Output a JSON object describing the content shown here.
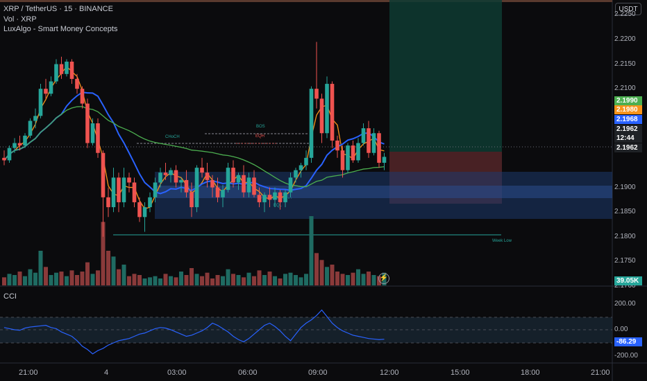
{
  "legend": {
    "symbol": "XRP / TetherUS · 15 · BINANCE",
    "volume": "Vol · XRP",
    "indicator": "LuxAlgo - Smart Money Concepts"
  },
  "currency_button": "USDT",
  "price_axis": [
    "2.2250",
    "2.2200",
    "2.2150",
    "2.2100",
    "2.1900",
    "2.1850",
    "2.1800",
    "2.1750",
    "2.1700"
  ],
  "price_tags": [
    {
      "text": "2.1990",
      "bg": "#4caf50",
      "fg": "#ffffff"
    },
    {
      "text": "2.1980",
      "bg": "#f7931a",
      "fg": "#ffffff"
    },
    {
      "text": "2.1968",
      "bg": "#2962ff",
      "fg": "#ffffff"
    },
    {
      "text": "2.1962",
      "bg": "#1f2226",
      "fg": "#ffffff"
    },
    {
      "text": "12:44",
      "bg": "#1f2226",
      "fg": "#ffffff"
    },
    {
      "text": "2.1962",
      "bg": "#1f2226",
      "fg": "#ffffff"
    }
  ],
  "volume_tag": {
    "text": "39.05K",
    "bg": "#26a69a"
  },
  "smc_labels": {
    "choch": "CHoCH",
    "bos": "BOS",
    "eqh": "EQH",
    "eql": "EQL",
    "week_low": "Week Low"
  },
  "cci": {
    "label": "CCI",
    "axis": [
      "200.00",
      "0.00",
      "-200.00"
    ],
    "value_tag": "-86.29"
  },
  "time_axis": [
    "21:00",
    "4",
    "03:00",
    "06:00",
    "09:00",
    "12:00",
    "15:00",
    "18:00",
    "21:00"
  ],
  "colors": {
    "up": "#26a69a",
    "down": "#ef5350",
    "ma_fast": "#f7931a",
    "ma_mid": "#2962ff",
    "ma_slow": "#4caf50",
    "cci": "#2962ff"
  },
  "chart_data": {
    "type": "candlestick",
    "symbol": "XRP/USDT",
    "timeframe": "15",
    "ohlc": [
      [
        2.196,
        2.1975,
        2.1945,
        2.1955
      ],
      [
        2.1955,
        2.1985,
        2.195,
        2.198
      ],
      [
        2.198,
        2.2,
        2.197,
        2.199
      ],
      [
        2.199,
        2.2005,
        2.1975,
        2.1985
      ],
      [
        2.1985,
        2.201,
        2.198,
        2.2005
      ],
      [
        2.2005,
        2.204,
        2.2,
        2.2035
      ],
      [
        2.2035,
        2.206,
        2.202,
        2.2045
      ],
      [
        2.2045,
        2.211,
        2.204,
        2.21
      ],
      [
        2.21,
        2.212,
        2.208,
        2.209
      ],
      [
        2.209,
        2.2125,
        2.2085,
        2.2115
      ],
      [
        2.2115,
        2.216,
        2.211,
        2.215
      ],
      [
        2.215,
        2.2165,
        2.212,
        2.213
      ],
      [
        2.213,
        2.216,
        2.2125,
        2.2155
      ],
      [
        2.2155,
        2.216,
        2.211,
        2.212
      ],
      [
        2.212,
        2.213,
        2.209,
        2.21
      ],
      [
        2.21,
        2.2105,
        2.206,
        2.207
      ],
      [
        2.207,
        2.208,
        2.198,
        2.199
      ],
      [
        2.199,
        2.204,
        2.1985,
        2.203
      ],
      [
        2.203,
        2.204,
        2.196,
        2.197
      ],
      [
        2.197,
        2.1975,
        2.18,
        2.188
      ],
      [
        2.188,
        2.19,
        2.184,
        2.186
      ],
      [
        2.186,
        2.194,
        2.185,
        2.192
      ],
      [
        2.192,
        2.193,
        2.185,
        2.187
      ],
      [
        2.187,
        2.194,
        2.186,
        2.192
      ],
      [
        2.192,
        2.193,
        2.189,
        2.191
      ],
      [
        2.191,
        2.192,
        2.186,
        2.187
      ],
      [
        2.187,
        2.188,
        2.183,
        2.184
      ],
      [
        2.184,
        2.187,
        2.181,
        2.186
      ],
      [
        2.186,
        2.189,
        2.185,
        2.188
      ],
      [
        2.188,
        2.192,
        2.187,
        2.191
      ],
      [
        2.191,
        2.194,
        2.19,
        2.193
      ],
      [
        2.193,
        2.195,
        2.1915,
        2.1925
      ],
      [
        2.1925,
        2.194,
        2.191,
        2.1935
      ],
      [
        2.1935,
        2.1945,
        2.19,
        2.191
      ],
      [
        2.191,
        2.192,
        2.189,
        2.1915
      ],
      [
        2.1915,
        2.1935,
        2.188,
        2.189
      ],
      [
        2.189,
        2.191,
        2.184,
        2.186
      ],
      [
        2.186,
        2.1945,
        2.185,
        2.194
      ],
      [
        2.194,
        2.196,
        2.192,
        2.193
      ],
      [
        2.193,
        2.195,
        2.19,
        2.1915
      ],
      [
        2.1915,
        2.1925,
        2.188,
        2.19
      ],
      [
        2.19,
        2.192,
        2.187,
        2.188
      ],
      [
        2.188,
        2.1905,
        2.186,
        2.1895
      ],
      [
        2.1895,
        2.195,
        2.189,
        2.194
      ],
      [
        2.194,
        2.1955,
        2.19,
        2.191
      ],
      [
        2.191,
        2.193,
        2.1895,
        2.1925
      ],
      [
        2.1925,
        2.1945,
        2.188,
        2.189
      ],
      [
        2.189,
        2.193,
        2.188,
        2.192
      ],
      [
        2.192,
        2.1935,
        2.188,
        2.1885
      ],
      [
        2.1885,
        2.19,
        2.186,
        2.187
      ],
      [
        2.187,
        2.189,
        2.185,
        2.1885
      ],
      [
        2.1885,
        2.19,
        2.186,
        2.1875
      ],
      [
        2.1875,
        2.19,
        2.186,
        2.189
      ],
      [
        2.189,
        2.1895,
        2.1855,
        2.187
      ],
      [
        2.187,
        2.1895,
        2.186,
        2.189
      ],
      [
        2.189,
        2.193,
        2.188,
        2.192
      ],
      [
        2.192,
        2.194,
        2.191,
        2.1935
      ],
      [
        2.1935,
        2.195,
        2.192,
        2.1945
      ],
      [
        2.1945,
        2.1975,
        2.1935,
        2.196
      ],
      [
        2.196,
        2.2105,
        2.195,
        2.21
      ],
      [
        2.21,
        2.2195,
        2.206,
        2.208
      ],
      [
        2.208,
        2.209,
        2.199,
        2.201
      ],
      [
        2.201,
        2.2125,
        2.2,
        2.211
      ],
      [
        2.211,
        2.2115,
        2.198,
        2.1995
      ],
      [
        2.1995,
        2.2005,
        2.196,
        2.1975
      ],
      [
        2.1975,
        2.1985,
        2.192,
        2.1935
      ],
      [
        2.1935,
        2.199,
        2.193,
        2.1985
      ],
      [
        2.1985,
        2.1995,
        2.195,
        2.1955
      ],
      [
        2.1955,
        2.2,
        2.195,
        2.199
      ],
      [
        2.199,
        2.203,
        2.1985,
        2.202
      ],
      [
        2.202,
        2.2035,
        2.196,
        2.197
      ],
      [
        2.197,
        2.202,
        2.1965,
        2.201
      ],
      [
        2.201,
        2.2015,
        2.194,
        2.195
      ],
      [
        2.195,
        2.197,
        2.1935,
        2.1962
      ]
    ],
    "volume": [
      7,
      10,
      9,
      12,
      8,
      14,
      11,
      30,
      16,
      9,
      11,
      12,
      8,
      13,
      9,
      12,
      20,
      10,
      13,
      55,
      30,
      25,
      14,
      18,
      8,
      10,
      9,
      6,
      7,
      8,
      6,
      10,
      8,
      7,
      12,
      9,
      15,
      10,
      8,
      11,
      6,
      9,
      8,
      14,
      10,
      9,
      7,
      11,
      8,
      13,
      9,
      12,
      8,
      6,
      10,
      11,
      9,
      7,
      10,
      60,
      28,
      22,
      16,
      18,
      12,
      10,
      9,
      11,
      14,
      10,
      12,
      9,
      8,
      11
    ],
    "cci": [
      20,
      10,
      0,
      -5,
      15,
      25,
      30,
      35,
      40,
      20,
      10,
      -20,
      -40,
      -60,
      -100,
      -150,
      -180,
      -220,
      -190,
      -170,
      -140,
      -120,
      -100,
      -90,
      -80,
      -60,
      -40,
      -30,
      -10,
      10,
      20,
      15,
      0,
      -20,
      -40,
      -60,
      -50,
      -30,
      -10,
      20,
      60,
      40,
      10,
      -20,
      -60,
      -90,
      -110,
      -80,
      -40,
      0,
      40,
      60,
      30,
      -10,
      -60,
      -100,
      -40,
      20,
      60,
      90,
      130,
      180,
      120,
      60,
      20,
      -10,
      -30,
      -50,
      -60,
      -70,
      -80,
      -85,
      -90,
      -86.29
    ],
    "price_range": [
      2.17,
      2.228
    ],
    "cci_range": [
      -240,
      240
    ]
  }
}
